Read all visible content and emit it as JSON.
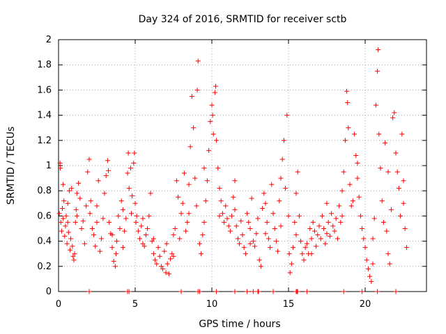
{
  "chart_data": {
    "type": "scatter",
    "title": "Day 324 of 2016, SRMTID for receiver sctb",
    "xlabel": "GPS time / hours",
    "ylabel": "SRMTID / TECUs",
    "xlim": [
      0,
      24
    ],
    "ylim": [
      0,
      2
    ],
    "xticks": [
      0,
      5,
      10,
      15,
      20
    ],
    "xtick_labels": [
      "0",
      "5",
      "10",
      "15",
      "20"
    ],
    "yticks": [
      0,
      0.2,
      0.4,
      0.6,
      0.8,
      1,
      1.2,
      1.4,
      1.6,
      1.8,
      2
    ],
    "ytick_labels": [
      "0",
      "0.2",
      "0.4",
      "0.6",
      "0.8",
      "1",
      "1.2",
      "1.4",
      "1.6",
      "1.8",
      "2"
    ],
    "grid": true,
    "marker": "+",
    "marker_color": "#ff0000",
    "series": [
      {
        "name": "SRMTID",
        "points": [
          [
            0.05,
            0.62
          ],
          [
            0.1,
            1.02
          ],
          [
            0.12,
            0.98
          ],
          [
            0.15,
            0.55
          ],
          [
            0.2,
            0.48
          ],
          [
            0.25,
            0.66
          ],
          [
            0.3,
            0.58
          ],
          [
            0.35,
            0.72
          ],
          [
            0.4,
            0.44
          ],
          [
            0.45,
            0.52
          ],
          [
            0.5,
            0.6
          ],
          [
            0.55,
            0.38
          ],
          [
            0.6,
            0.7
          ],
          [
            0.65,
            0.47
          ],
          [
            0.7,
            0.8
          ],
          [
            0.75,
            0.33
          ],
          [
            0.8,
            0.42
          ],
          [
            0.85,
            0.82
          ],
          [
            0.9,
            0.36
          ],
          [
            0.95,
            0.28
          ],
          [
            1.0,
            0.25
          ],
          [
            1.05,
            0.3
          ],
          [
            1.1,
            0.55
          ],
          [
            1.15,
            0.65
          ],
          [
            1.2,
            0.6
          ],
          [
            1.3,
            0.86
          ],
          [
            1.4,
            0.74
          ],
          [
            1.5,
            0.5
          ],
          [
            1.6,
            0.56
          ],
          [
            1.7,
            0.38
          ],
          [
            1.8,
            0.68
          ],
          [
            1.9,
            0.95
          ],
          [
            2.0,
            1.05
          ],
          [
            2.05,
            0.62
          ],
          [
            2.1,
            0.72
          ],
          [
            2.2,
            0.5
          ],
          [
            2.3,
            0.45
          ],
          [
            2.4,
            0.36
          ],
          [
            2.5,
            0.55
          ],
          [
            2.6,
            0.88
          ],
          [
            2.7,
            0.32
          ],
          [
            2.8,
            0.42
          ],
          [
            2.9,
            0.58
          ],
          [
            3.0,
            0.78
          ],
          [
            3.1,
            0.92
          ],
          [
            3.2,
            1.04
          ],
          [
            3.25,
            0.96
          ],
          [
            3.3,
            0.55
          ],
          [
            3.4,
            0.46
          ],
          [
            3.5,
            0.35
          ],
          [
            3.6,
            0.24
          ],
          [
            3.7,
            0.2
          ],
          [
            3.75,
            0.3
          ],
          [
            3.8,
            0.4
          ],
          [
            3.9,
            0.6
          ],
          [
            4.0,
            0.5
          ],
          [
            4.1,
            0.72
          ],
          [
            4.2,
            0.35
          ],
          [
            4.3,
            0.48
          ],
          [
            4.4,
            0.58
          ],
          [
            4.5,
            0.94
          ],
          [
            4.55,
            1.1
          ],
          [
            4.6,
            0.82
          ],
          [
            4.7,
            0.98
          ],
          [
            4.75,
            0.62
          ],
          [
            4.8,
            0.76
          ],
          [
            4.9,
            1.02
          ],
          [
            4.95,
            1.1
          ],
          [
            5.0,
            0.7
          ],
          [
            5.05,
            0.55
          ],
          [
            5.1,
            0.6
          ],
          [
            5.2,
            0.48
          ],
          [
            5.3,
            0.42
          ],
          [
            5.4,
            0.52
          ],
          [
            5.5,
            0.38
          ],
          [
            5.6,
            0.36
          ],
          [
            5.7,
            0.45
          ],
          [
            5.8,
            0.5
          ],
          [
            5.9,
            0.6
          ],
          [
            6.0,
            0.78
          ],
          [
            6.1,
            0.4
          ],
          [
            6.2,
            0.3
          ],
          [
            6.3,
            0.25
          ],
          [
            6.4,
            0.22
          ],
          [
            6.5,
            0.35
          ],
          [
            6.6,
            0.28
          ],
          [
            6.7,
            0.2
          ],
          [
            6.8,
            0.18
          ],
          [
            6.9,
            0.32
          ],
          [
            7.0,
            0.15
          ],
          [
            7.05,
            0.38
          ],
          [
            7.1,
            0.22
          ],
          [
            7.2,
            0.14
          ],
          [
            7.3,
            0.26
          ],
          [
            7.4,
            0.3
          ],
          [
            7.5,
            0.45
          ],
          [
            7.6,
            0.5
          ],
          [
            7.7,
            0.88
          ],
          [
            7.8,
            0.75
          ],
          [
            7.9,
            0.42
          ],
          [
            8.0,
            0.62
          ],
          [
            8.1,
            0.7
          ],
          [
            8.2,
            0.94
          ],
          [
            8.3,
            0.48
          ],
          [
            8.4,
            0.55
          ],
          [
            8.5,
            0.85
          ],
          [
            8.6,
            1.15
          ],
          [
            8.7,
            1.55
          ],
          [
            8.8,
            1.3
          ],
          [
            8.9,
            0.9
          ],
          [
            9.0,
            0.68
          ],
          [
            9.05,
            1.6
          ],
          [
            9.1,
            1.83
          ],
          [
            9.2,
            0.38
          ],
          [
            9.3,
            0.3
          ],
          [
            9.4,
            0.45
          ],
          [
            9.5,
            0.55
          ],
          [
            9.6,
            0.72
          ],
          [
            9.7,
            0.88
          ],
          [
            9.8,
            1.12
          ],
          [
            9.9,
            1.35
          ],
          [
            10.0,
            1.48
          ],
          [
            10.05,
            1.4
          ],
          [
            10.1,
            1.25
          ],
          [
            10.2,
            1.58
          ],
          [
            10.25,
            1.63
          ],
          [
            10.3,
            1.2
          ],
          [
            10.4,
            0.98
          ],
          [
            10.5,
            0.82
          ],
          [
            10.6,
            0.72
          ],
          [
            10.7,
            0.62
          ],
          [
            10.8,
            0.55
          ],
          [
            10.9,
            0.68
          ],
          [
            11.0,
            0.58
          ],
          [
            11.1,
            0.52
          ],
          [
            11.2,
            0.48
          ],
          [
            11.3,
            0.6
          ],
          [
            11.4,
            0.75
          ],
          [
            11.5,
            0.65
          ],
          [
            11.6,
            0.52
          ],
          [
            11.7,
            0.42
          ],
          [
            11.8,
            0.38
          ],
          [
            11.9,
            0.56
          ],
          [
            12.0,
            0.45
          ],
          [
            12.1,
            0.35
          ],
          [
            12.2,
            0.3
          ],
          [
            12.3,
            0.62
          ],
          [
            12.4,
            0.55
          ],
          [
            12.5,
            0.5
          ],
          [
            12.6,
            0.74
          ],
          [
            12.7,
            0.4
          ],
          [
            12.8,
            0.36
          ],
          [
            12.9,
            0.46
          ],
          [
            13.0,
            0.58
          ],
          [
            13.1,
            0.25
          ],
          [
            13.2,
            0.2
          ],
          [
            13.3,
            0.66
          ],
          [
            13.4,
            0.78
          ],
          [
            13.5,
            0.7
          ],
          [
            13.6,
            0.55
          ],
          [
            13.7,
            0.42
          ],
          [
            13.8,
            0.35
          ],
          [
            13.9,
            0.85
          ],
          [
            14.0,
            0.62
          ],
          [
            14.1,
            0.5
          ],
          [
            14.2,
            0.4
          ],
          [
            14.3,
            0.32
          ],
          [
            14.4,
            0.72
          ],
          [
            14.5,
            0.9
          ],
          [
            14.6,
            1.05
          ],
          [
            14.7,
            1.2
          ],
          [
            14.8,
            0.82
          ],
          [
            14.9,
            1.4
          ],
          [
            15.0,
            0.6
          ],
          [
            15.05,
            0.3
          ],
          [
            15.1,
            0.15
          ],
          [
            15.2,
            0.22
          ],
          [
            15.3,
            0.35
          ],
          [
            15.4,
            0.55
          ],
          [
            15.5,
            0.78
          ],
          [
            15.6,
            0.95
          ],
          [
            15.7,
            0.6
          ],
          [
            15.8,
            0.4
          ],
          [
            15.9,
            0.3
          ],
          [
            16.0,
            0.25
          ],
          [
            16.1,
            0.35
          ],
          [
            16.2,
            0.38
          ],
          [
            16.3,
            0.3
          ],
          [
            16.4,
            0.5
          ],
          [
            16.5,
            0.42
          ],
          [
            16.6,
            0.55
          ],
          [
            16.7,
            0.48
          ],
          [
            16.8,
            0.36
          ],
          [
            16.9,
            0.45
          ],
          [
            17.0,
            0.52
          ],
          [
            17.1,
            0.42
          ],
          [
            17.2,
            0.6
          ],
          [
            17.3,
            0.5
          ],
          [
            17.4,
            0.38
          ],
          [
            17.5,
            0.46
          ],
          [
            17.6,
            0.55
          ],
          [
            17.7,
            0.44
          ],
          [
            17.8,
            0.62
          ],
          [
            17.9,
            0.52
          ],
          [
            18.0,
            0.48
          ],
          [
            18.1,
            0.58
          ],
          [
            18.2,
            0.42
          ],
          [
            18.3,
            0.68
          ],
          [
            18.4,
            0.55
          ],
          [
            18.5,
            0.8
          ],
          [
            18.6,
            0.95
          ],
          [
            18.7,
            1.2
          ],
          [
            18.8,
            1.59
          ],
          [
            18.85,
            1.5
          ],
          [
            18.9,
            1.3
          ],
          [
            19.0,
            0.85
          ],
          [
            19.1,
            0.68
          ],
          [
            19.2,
            0.72
          ],
          [
            19.3,
            1.25
          ],
          [
            19.4,
            1.08
          ],
          [
            19.5,
            0.9
          ],
          [
            19.6,
            0.75
          ],
          [
            19.7,
            0.6
          ],
          [
            19.8,
            0.5
          ],
          [
            19.9,
            0.42
          ],
          [
            20.0,
            0.35
          ],
          [
            20.1,
            0.25
          ],
          [
            20.2,
            0.18
          ],
          [
            20.3,
            0.12
          ],
          [
            20.4,
            0.08
          ],
          [
            20.5,
            0.22
          ],
          [
            20.6,
            0.58
          ],
          [
            20.7,
            1.48
          ],
          [
            20.8,
            1.75
          ],
          [
            20.85,
            1.92
          ],
          [
            20.9,
            1.25
          ],
          [
            21.0,
            0.98
          ],
          [
            21.1,
            0.72
          ],
          [
            21.2,
            0.55
          ],
          [
            21.3,
            1.18
          ],
          [
            21.4,
            0.48
          ],
          [
            21.5,
            0.3
          ],
          [
            21.6,
            0.22
          ],
          [
            21.7,
            0.65
          ],
          [
            21.8,
            1.38
          ],
          [
            21.9,
            1.42
          ],
          [
            22.0,
            1.1
          ],
          [
            22.1,
            0.95
          ],
          [
            22.2,
            0.82
          ],
          [
            22.3,
            0.6
          ],
          [
            22.4,
            1.25
          ],
          [
            22.5,
            0.7
          ],
          [
            22.6,
            0.5
          ],
          [
            22.7,
            0.35
          ],
          [
            0.3,
            0.85
          ],
          [
            0.6,
            0.55
          ],
          [
            1.2,
            0.78
          ],
          [
            2.5,
            0.68
          ],
          [
            3.5,
            0.45
          ],
          [
            4.2,
            0.65
          ],
          [
            5.5,
            0.58
          ],
          [
            6.2,
            0.42
          ],
          [
            7.5,
            0.28
          ],
          [
            8.5,
            0.62
          ],
          [
            9.5,
            0.98
          ],
          [
            10.5,
            0.6
          ],
          [
            11.5,
            0.88
          ],
          [
            12.5,
            0.38
          ],
          [
            13.5,
            0.46
          ],
          [
            14.5,
            0.52
          ],
          [
            15.5,
            0.45
          ],
          [
            16.5,
            0.3
          ],
          [
            17.5,
            0.7
          ],
          [
            18.5,
            0.6
          ],
          [
            19.5,
            1.02
          ],
          [
            20.5,
            0.42
          ],
          [
            21.5,
            0.95
          ],
          [
            22.5,
            0.88
          ],
          [
            2.0,
            0
          ],
          [
            4.5,
            0
          ],
          [
            4.6,
            0
          ],
          [
            8.0,
            0
          ],
          [
            9.1,
            0
          ],
          [
            9.2,
            0
          ],
          [
            10.3,
            0
          ],
          [
            11.5,
            0
          ],
          [
            12.3,
            0
          ],
          [
            12.7,
            0
          ],
          [
            13.0,
            0
          ],
          [
            13.05,
            0
          ],
          [
            14.0,
            0
          ],
          [
            15.5,
            0
          ],
          [
            15.55,
            0
          ],
          [
            15.6,
            0
          ],
          [
            16.2,
            0
          ],
          [
            18.6,
            0
          ],
          [
            19.8,
            0
          ],
          [
            20.8,
            0
          ],
          [
            22.0,
            0
          ]
        ]
      }
    ]
  }
}
